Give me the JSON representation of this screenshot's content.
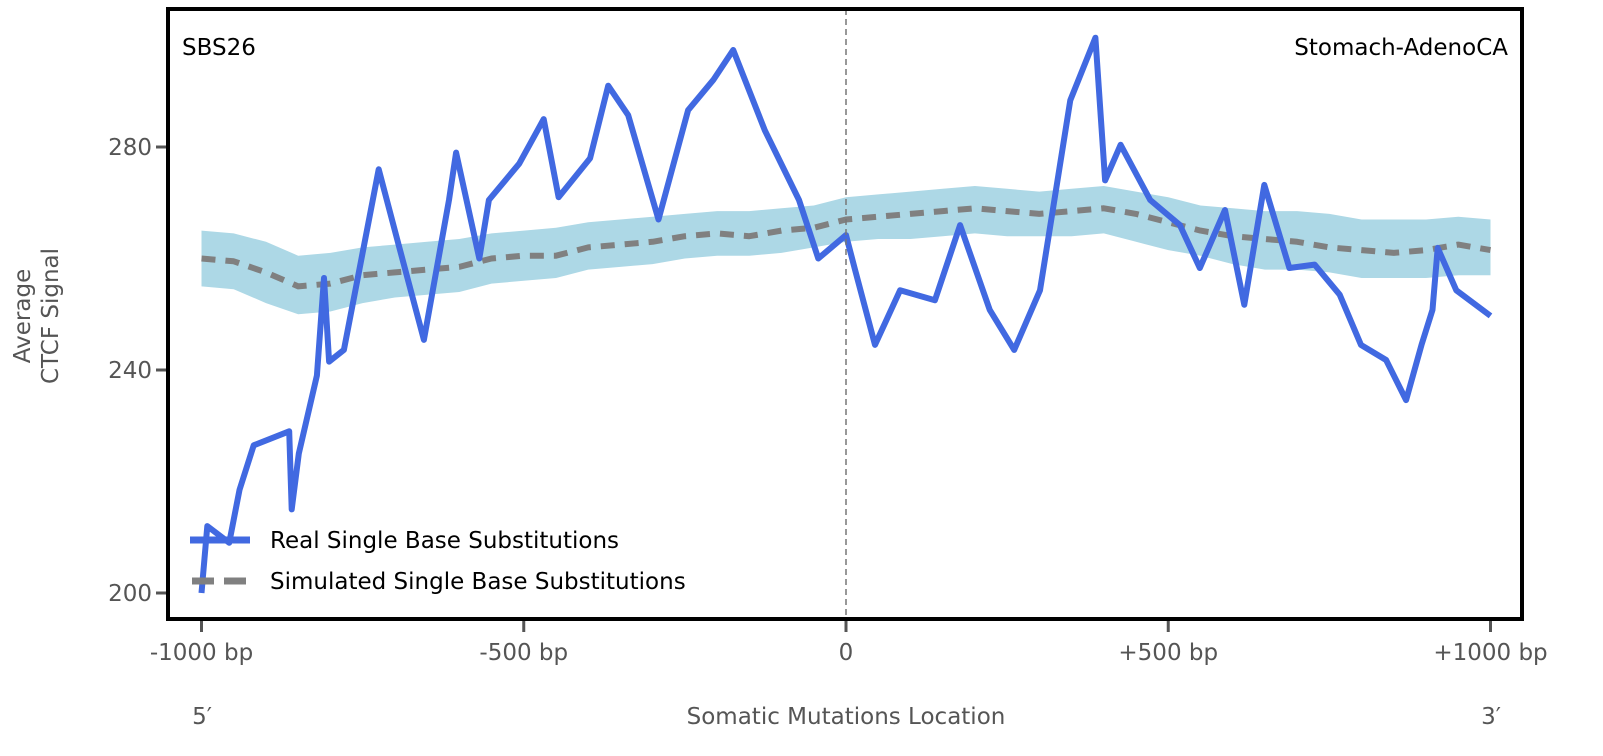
{
  "chart_data": {
    "type": "line",
    "signature_label": "SBS26",
    "cancer_type_label": "Stomach-AdenoCA",
    "xlabel": "Somatic Mutations Location",
    "ylabel_lines": [
      "Average",
      "CTCF Signal"
    ],
    "xlim": [
      -1050,
      1050
    ],
    "ylim": [
      195,
      305
    ],
    "x_ticks": [
      {
        "value": -1000,
        "label": "-1000 bp"
      },
      {
        "value": -500,
        "label": "-500 bp"
      },
      {
        "value": 0,
        "label": "0"
      },
      {
        "value": 500,
        "label": "+500 bp"
      },
      {
        "value": 1000,
        "label": "+1000 bp"
      }
    ],
    "y_ticks": [
      {
        "value": 200,
        "label": "200"
      },
      {
        "value": 240,
        "label": "240"
      },
      {
        "value": 280,
        "label": "280"
      }
    ],
    "strand_labels": {
      "left": "5′",
      "right": "3′"
    },
    "center_line": {
      "x": 0,
      "style": "dashed"
    },
    "legend_position": "lower-left",
    "series": [
      {
        "name": "Real Single Base Substitutions",
        "color": "#4169e1",
        "style": "solid",
        "x": [
          -1000,
          -991,
          -957,
          -941,
          -919,
          -864,
          -860,
          -849,
          -821,
          -810,
          -802,
          -779,
          -725,
          -694,
          -655,
          -616,
          -605,
          -569,
          -554,
          -507,
          -469,
          -446,
          -397,
          -369,
          -338,
          -291,
          -245,
          -206,
          -175,
          -126,
          -73,
          -43,
          0,
          14,
          45,
          84,
          138,
          177,
          223,
          261,
          301,
          348,
          387,
          402,
          426,
          472,
          518,
          549,
          588,
          618,
          649,
          688,
          727,
          766,
          799,
          838,
          869,
          893,
          910,
          918,
          947,
          1000
        ],
        "y": [
          200,
          212,
          209,
          218.5,
          226.5,
          229,
          215,
          225,
          239,
          256.5,
          241.5,
          243.6,
          276,
          262.4,
          245.4,
          270.5,
          279,
          260,
          270.5,
          277,
          285,
          271,
          278,
          291,
          285.7,
          267,
          286.6,
          292,
          297.4,
          283,
          270.5,
          260,
          264.2,
          258,
          244.5,
          254.3,
          252.5,
          266,
          250.8,
          243.6,
          254.3,
          288.4,
          299.6,
          274,
          280.4,
          270.5,
          266,
          258.3,
          268.7,
          251.7,
          273.2,
          258.3,
          258.9,
          253.5,
          244.5,
          241.8,
          234.6,
          244.5,
          250.8,
          261.9,
          254.3,
          249.7
        ]
      },
      {
        "name": "Simulated Single Base Substitutions",
        "color": "#808080",
        "style": "dashed",
        "x": [
          -1000,
          -950,
          -900,
          -850,
          -800,
          -750,
          -700,
          -650,
          -600,
          -550,
          -500,
          -450,
          -400,
          -350,
          -300,
          -250,
          -200,
          -150,
          -100,
          -50,
          0,
          50,
          100,
          150,
          200,
          250,
          300,
          350,
          400,
          450,
          500,
          550,
          600,
          650,
          700,
          750,
          800,
          850,
          900,
          950,
          1000
        ],
        "y": [
          260,
          259.5,
          257.5,
          255,
          255.5,
          257,
          257.5,
          258,
          258.5,
          260,
          260.5,
          260.5,
          262,
          262.5,
          263,
          264,
          264.5,
          264,
          265,
          265.5,
          267,
          267.5,
          268,
          268.5,
          269,
          268.5,
          268,
          268.5,
          269,
          268,
          266.5,
          265,
          264,
          263.5,
          263,
          262,
          261.5,
          261,
          261.5,
          262.5,
          261.5
        ]
      }
    ],
    "confidence_band": {
      "name": "Simulated variability",
      "color": "#add8e6",
      "x": [
        -1000,
        -950,
        -900,
        -850,
        -800,
        -750,
        -700,
        -650,
        -600,
        -550,
        -500,
        -450,
        -400,
        -350,
        -300,
        -250,
        -200,
        -150,
        -100,
        -50,
        0,
        50,
        100,
        150,
        200,
        250,
        300,
        350,
        400,
        450,
        500,
        550,
        600,
        650,
        700,
        750,
        800,
        850,
        900,
        950,
        1000
      ],
      "lower": [
        255,
        254.5,
        252,
        250,
        250.5,
        252,
        253,
        253.5,
        254,
        255.5,
        256,
        256.5,
        258,
        258.5,
        259,
        260,
        260.5,
        260.5,
        261,
        262,
        263,
        263.5,
        263.5,
        264,
        264.5,
        264,
        264,
        264,
        264.5,
        263,
        261.5,
        260.5,
        259,
        258,
        258,
        257.5,
        256.5,
        256.5,
        256.5,
        257,
        257
      ],
      "upper": [
        265,
        264.5,
        263,
        260.5,
        261,
        262,
        262.5,
        263,
        263.5,
        264.5,
        265,
        265.5,
        266.5,
        267,
        267.5,
        268,
        268.5,
        268.5,
        269,
        269.5,
        271,
        271.5,
        272,
        272.5,
        273,
        272.5,
        272,
        272.5,
        273,
        272,
        271,
        269.5,
        269,
        268.5,
        268.5,
        268,
        267,
        267,
        267,
        267.5,
        267
      ]
    }
  }
}
